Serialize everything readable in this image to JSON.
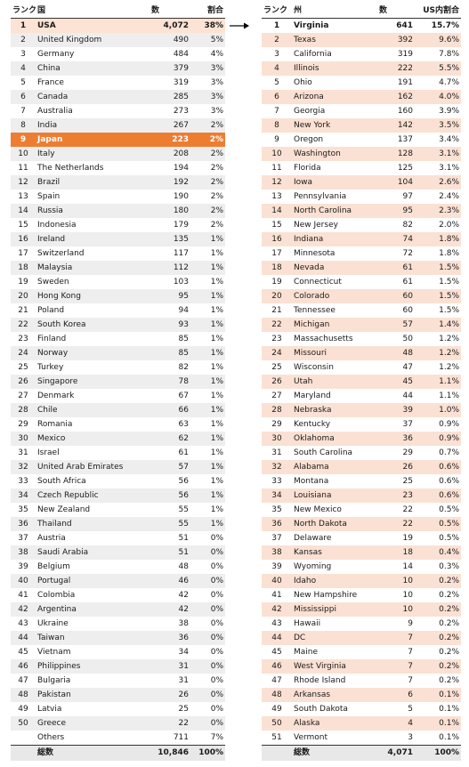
{
  "left": {
    "headers": {
      "rank": "ランク",
      "name": "国",
      "count": "数",
      "share": "割合"
    },
    "rows": [
      {
        "rank": "1",
        "name": "USA",
        "count": "4,072",
        "share": "38%"
      },
      {
        "rank": "2",
        "name": "United Kingdom",
        "count": "490",
        "share": "5%"
      },
      {
        "rank": "3",
        "name": "Germany",
        "count": "484",
        "share": "4%"
      },
      {
        "rank": "4",
        "name": "China",
        "count": "379",
        "share": "3%"
      },
      {
        "rank": "5",
        "name": "France",
        "count": "319",
        "share": "3%"
      },
      {
        "rank": "6",
        "name": "Canada",
        "count": "285",
        "share": "3%"
      },
      {
        "rank": "7",
        "name": "Australia",
        "count": "273",
        "share": "3%"
      },
      {
        "rank": "8",
        "name": "India",
        "count": "267",
        "share": "2%"
      },
      {
        "rank": "9",
        "name": "Japan",
        "count": "223",
        "share": "2%"
      },
      {
        "rank": "10",
        "name": "Italy",
        "count": "208",
        "share": "2%"
      },
      {
        "rank": "11",
        "name": "The Netherlands",
        "count": "194",
        "share": "2%"
      },
      {
        "rank": "12",
        "name": "Brazil",
        "count": "192",
        "share": "2%"
      },
      {
        "rank": "13",
        "name": "Spain",
        "count": "190",
        "share": "2%"
      },
      {
        "rank": "14",
        "name": "Russia",
        "count": "180",
        "share": "2%"
      },
      {
        "rank": "15",
        "name": "Indonesia",
        "count": "179",
        "share": "2%"
      },
      {
        "rank": "16",
        "name": "Ireland",
        "count": "135",
        "share": "1%"
      },
      {
        "rank": "17",
        "name": "Switzerland",
        "count": "117",
        "share": "1%"
      },
      {
        "rank": "18",
        "name": "Malaysia",
        "count": "112",
        "share": "1%"
      },
      {
        "rank": "19",
        "name": "Sweden",
        "count": "103",
        "share": "1%"
      },
      {
        "rank": "20",
        "name": "Hong Kong",
        "count": "95",
        "share": "1%"
      },
      {
        "rank": "21",
        "name": "Poland",
        "count": "94",
        "share": "1%"
      },
      {
        "rank": "22",
        "name": "South Korea",
        "count": "93",
        "share": "1%"
      },
      {
        "rank": "23",
        "name": "Finland",
        "count": "85",
        "share": "1%"
      },
      {
        "rank": "24",
        "name": "Norway",
        "count": "85",
        "share": "1%"
      },
      {
        "rank": "25",
        "name": "Turkey",
        "count": "82",
        "share": "1%"
      },
      {
        "rank": "26",
        "name": "Singapore",
        "count": "78",
        "share": "1%"
      },
      {
        "rank": "27",
        "name": "Denmark",
        "count": "67",
        "share": "1%"
      },
      {
        "rank": "28",
        "name": "Chile",
        "count": "66",
        "share": "1%"
      },
      {
        "rank": "29",
        "name": "Romania",
        "count": "63",
        "share": "1%"
      },
      {
        "rank": "30",
        "name": "Mexico",
        "count": "62",
        "share": "1%"
      },
      {
        "rank": "31",
        "name": "Israel",
        "count": "61",
        "share": "1%"
      },
      {
        "rank": "32",
        "name": "United Arab Emirates",
        "count": "57",
        "share": "1%"
      },
      {
        "rank": "33",
        "name": "South Africa",
        "count": "56",
        "share": "1%"
      },
      {
        "rank": "34",
        "name": "Czech Republic",
        "count": "56",
        "share": "1%"
      },
      {
        "rank": "35",
        "name": "New Zealand",
        "count": "55",
        "share": "1%"
      },
      {
        "rank": "36",
        "name": "Thailand",
        "count": "55",
        "share": "1%"
      },
      {
        "rank": "37",
        "name": "Austria",
        "count": "51",
        "share": "0%"
      },
      {
        "rank": "38",
        "name": "Saudi Arabia",
        "count": "51",
        "share": "0%"
      },
      {
        "rank": "39",
        "name": "Belgium",
        "count": "48",
        "share": "0%"
      },
      {
        "rank": "40",
        "name": "Portugal",
        "count": "46",
        "share": "0%"
      },
      {
        "rank": "41",
        "name": "Colombia",
        "count": "42",
        "share": "0%"
      },
      {
        "rank": "42",
        "name": "Argentina",
        "count": "42",
        "share": "0%"
      },
      {
        "rank": "43",
        "name": "Ukraine",
        "count": "38",
        "share": "0%"
      },
      {
        "rank": "44",
        "name": "Taiwan",
        "count": "36",
        "share": "0%"
      },
      {
        "rank": "45",
        "name": "Vietnam",
        "count": "34",
        "share": "0%"
      },
      {
        "rank": "46",
        "name": "Philippines",
        "count": "31",
        "share": "0%"
      },
      {
        "rank": "47",
        "name": "Bulgaria",
        "count": "31",
        "share": "0%"
      },
      {
        "rank": "48",
        "name": "Pakistan",
        "count": "26",
        "share": "0%"
      },
      {
        "rank": "49",
        "name": "Latvia",
        "count": "25",
        "share": "0%"
      },
      {
        "rank": "50",
        "name": "Greece",
        "count": "22",
        "share": "0%"
      },
      {
        "rank": "",
        "name": "Others",
        "count": "711",
        "share": "7%"
      }
    ],
    "total": {
      "rank": "",
      "name": "総数",
      "count": "10,846",
      "share": "100%"
    }
  },
  "right": {
    "headers": {
      "rank": "ランク",
      "name": "州",
      "count": "数",
      "share": "US内割合"
    },
    "rows": [
      {
        "rank": "1",
        "name": "Virginia",
        "count": "641",
        "share": "15.7%"
      },
      {
        "rank": "2",
        "name": "Texas",
        "count": "392",
        "share": "9.6%"
      },
      {
        "rank": "3",
        "name": "California",
        "count": "319",
        "share": "7.8%"
      },
      {
        "rank": "4",
        "name": "Illinois",
        "count": "222",
        "share": "5.5%"
      },
      {
        "rank": "5",
        "name": "Ohio",
        "count": "191",
        "share": "4.7%"
      },
      {
        "rank": "6",
        "name": "Arizona",
        "count": "162",
        "share": "4.0%"
      },
      {
        "rank": "7",
        "name": "Georgia",
        "count": "160",
        "share": "3.9%"
      },
      {
        "rank": "8",
        "name": "New York",
        "count": "142",
        "share": "3.5%"
      },
      {
        "rank": "9",
        "name": "Oregon",
        "count": "137",
        "share": "3.4%"
      },
      {
        "rank": "10",
        "name": "Washington",
        "count": "128",
        "share": "3.1%"
      },
      {
        "rank": "11",
        "name": "Florida",
        "count": "125",
        "share": "3.1%"
      },
      {
        "rank": "12",
        "name": "Iowa",
        "count": "104",
        "share": "2.6%"
      },
      {
        "rank": "13",
        "name": "Pennsylvania",
        "count": "97",
        "share": "2.4%"
      },
      {
        "rank": "14",
        "name": "North Carolina",
        "count": "95",
        "share": "2.3%"
      },
      {
        "rank": "15",
        "name": "New Jersey",
        "count": "82",
        "share": "2.0%"
      },
      {
        "rank": "16",
        "name": "Indiana",
        "count": "74",
        "share": "1.8%"
      },
      {
        "rank": "17",
        "name": "Minnesota",
        "count": "72",
        "share": "1.8%"
      },
      {
        "rank": "18",
        "name": "Nevada",
        "count": "61",
        "share": "1.5%"
      },
      {
        "rank": "19",
        "name": "Connecticut",
        "count": "61",
        "share": "1.5%"
      },
      {
        "rank": "20",
        "name": "Colorado",
        "count": "60",
        "share": "1.5%"
      },
      {
        "rank": "21",
        "name": "Tennessee",
        "count": "60",
        "share": "1.5%"
      },
      {
        "rank": "22",
        "name": "Michigan",
        "count": "57",
        "share": "1.4%"
      },
      {
        "rank": "23",
        "name": "Massachusetts",
        "count": "50",
        "share": "1.2%"
      },
      {
        "rank": "24",
        "name": "Missouri",
        "count": "48",
        "share": "1.2%"
      },
      {
        "rank": "25",
        "name": "Wisconsin",
        "count": "47",
        "share": "1.2%"
      },
      {
        "rank": "26",
        "name": "Utah",
        "count": "45",
        "share": "1.1%"
      },
      {
        "rank": "27",
        "name": "Maryland",
        "count": "44",
        "share": "1.1%"
      },
      {
        "rank": "28",
        "name": "Nebraska",
        "count": "39",
        "share": "1.0%"
      },
      {
        "rank": "29",
        "name": "Kentucky",
        "count": "37",
        "share": "0.9%"
      },
      {
        "rank": "30",
        "name": "Oklahoma",
        "count": "36",
        "share": "0.9%"
      },
      {
        "rank": "31",
        "name": "South Carolina",
        "count": "29",
        "share": "0.7%"
      },
      {
        "rank": "32",
        "name": "Alabama",
        "count": "26",
        "share": "0.6%"
      },
      {
        "rank": "33",
        "name": "Montana",
        "count": "25",
        "share": "0.6%"
      },
      {
        "rank": "34",
        "name": "Louisiana",
        "count": "23",
        "share": "0.6%"
      },
      {
        "rank": "35",
        "name": "New Mexico",
        "count": "22",
        "share": "0.5%"
      },
      {
        "rank": "36",
        "name": "North Dakota",
        "count": "22",
        "share": "0.5%"
      },
      {
        "rank": "37",
        "name": "Delaware",
        "count": "19",
        "share": "0.5%"
      },
      {
        "rank": "38",
        "name": "Kansas",
        "count": "18",
        "share": "0.4%"
      },
      {
        "rank": "39",
        "name": "Wyoming",
        "count": "14",
        "share": "0.3%"
      },
      {
        "rank": "40",
        "name": "Idaho",
        "count": "10",
        "share": "0.2%"
      },
      {
        "rank": "41",
        "name": "New Hampshire",
        "count": "10",
        "share": "0.2%"
      },
      {
        "rank": "42",
        "name": "Mississippi",
        "count": "10",
        "share": "0.2%"
      },
      {
        "rank": "43",
        "name": "Hawaii",
        "count": "9",
        "share": "0.2%"
      },
      {
        "rank": "44",
        "name": "DC",
        "count": "7",
        "share": "0.2%"
      },
      {
        "rank": "45",
        "name": "Maine",
        "count": "7",
        "share": "0.2%"
      },
      {
        "rank": "46",
        "name": "West Virginia",
        "count": "7",
        "share": "0.2%"
      },
      {
        "rank": "47",
        "name": "Rhode Island",
        "count": "7",
        "share": "0.2%"
      },
      {
        "rank": "48",
        "name": "Arkansas",
        "count": "6",
        "share": "0.1%"
      },
      {
        "rank": "49",
        "name": "South Dakota",
        "count": "5",
        "share": "0.1%"
      },
      {
        "rank": "50",
        "name": "Alaska",
        "count": "4",
        "share": "0.1%"
      },
      {
        "rank": "51",
        "name": "Vermont",
        "count": "3",
        "share": "0.1%"
      }
    ],
    "total": {
      "rank": "",
      "name": "総数",
      "count": "4,071",
      "share": "100%"
    }
  },
  "colors": {
    "highlight_row": "#ed7d31",
    "first_row": "#fce3d4",
    "right_stripe": "#fbe1d3",
    "left_stripe": "#eeeeee"
  }
}
